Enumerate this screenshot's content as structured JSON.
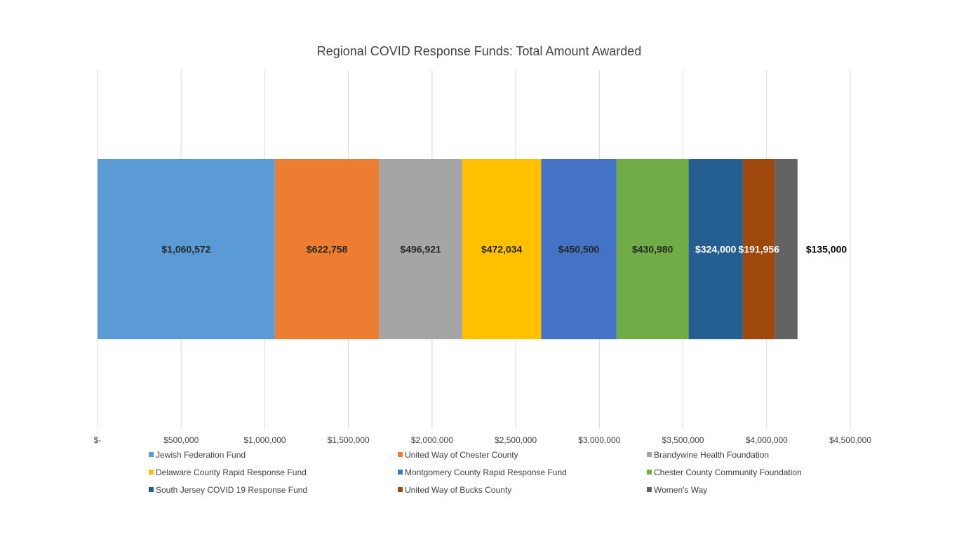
{
  "chart_data": {
    "type": "bar",
    "orientation": "horizontal-stacked",
    "title": "Regional COVID Response Funds: Total Amount Awarded",
    "xlim": [
      0,
      4500000
    ],
    "x_ticks": [
      0,
      500000,
      1000000,
      1500000,
      2000000,
      2500000,
      3000000,
      3500000,
      4000000,
      4500000
    ],
    "x_tick_labels": [
      "$-",
      "$500,000",
      "$1,000,000",
      "$1,500,000",
      "$2,000,000",
      "$2,500,000",
      "$3,000,000",
      "$3,500,000",
      "$4,000,000",
      "$4,500,000"
    ],
    "grid": true,
    "legend_position": "bottom",
    "series": [
      {
        "name": "Jewish Federation Fund",
        "value": 1060572,
        "label": "$1,060,572",
        "color": "#5B9BD5",
        "label_color": "#262626"
      },
      {
        "name": "United Way of Chester County",
        "value": 622758,
        "label": "$622,758",
        "color": "#ED7D31",
        "label_color": "#262626"
      },
      {
        "name": "Brandywine Health Foundation",
        "value": 496921,
        "label": "$496,921",
        "color": "#A5A5A5",
        "label_color": "#262626"
      },
      {
        "name": "Delaware County Rapid Response Fund",
        "value": 472034,
        "label": "$472,034",
        "color": "#FFC000",
        "label_color": "#262626"
      },
      {
        "name": "Montgomery County Rapid Response Fund",
        "value": 450500,
        "label": "$450,500",
        "color": "#4472C4",
        "label_color": "#262626"
      },
      {
        "name": "Chester County Community Foundation",
        "value": 430980,
        "label": "$430,980",
        "color": "#70AD47",
        "label_color": "#262626"
      },
      {
        "name": "South Jersey COVID 19 Response Fund",
        "value": 324000,
        "label": "$324,000",
        "color": "#255E91",
        "label_color": "#FFFFFF"
      },
      {
        "name": "United Way of Bucks County",
        "value": 191956,
        "label": "$191,956",
        "color": "#9E480E",
        "label_color": "#FFFFFF"
      },
      {
        "name": "Women's Way",
        "value": 135000,
        "label": "$135,000",
        "color": "#636363",
        "label_color": "#000000"
      }
    ]
  }
}
